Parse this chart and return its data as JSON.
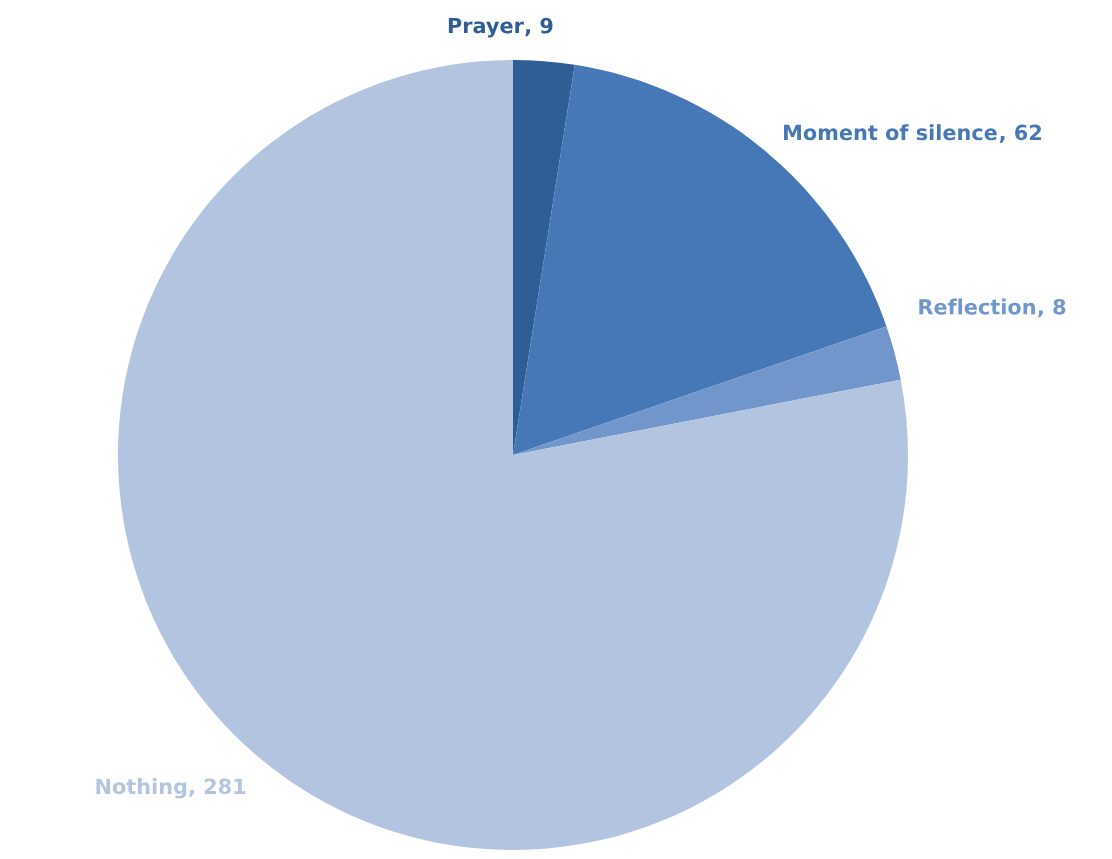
{
  "chart_data": {
    "type": "pie",
    "categories": [
      "Prayer",
      "Moment of silence",
      "Reflection",
      "Nothing"
    ],
    "values": [
      9,
      62,
      8,
      281
    ],
    "colors": [
      "#2f5d95",
      "#4677b6",
      "#7096cc",
      "#b3c4e1"
    ],
    "value_labels": [
      ", 9",
      ", 62",
      ", 8",
      ", 281"
    ]
  }
}
